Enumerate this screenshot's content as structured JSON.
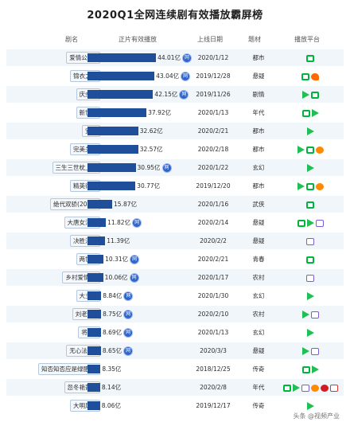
{
  "title": "2020Q1全网连续剧有效播放霸屏榜",
  "headers": {
    "name": "剧名",
    "views": "正片有效播放",
    "date": "上线日期",
    "genre": "题材",
    "platform": "播放平台"
  },
  "colors": {
    "bar": "#1f4e9a",
    "row_alt": "#f1f6fb",
    "net_flag": "#2f65c9"
  },
  "chart_data": {
    "type": "bar",
    "title": "2020Q1全网连续剧有效播放霸屏榜",
    "value_unit": "亿",
    "xlim": [
      0,
      45
    ],
    "rows": [
      {
        "name": "爱情公寓5",
        "value": 44.01,
        "label": "44.01亿",
        "net": true,
        "date": "2020/1/12",
        "genre": "都市",
        "platforms": [
          "iqiyi"
        ]
      },
      {
        "name": "锦衣之下",
        "value": 43.04,
        "label": "43.04亿",
        "net": true,
        "date": "2019/12/28",
        "genre": "悬疑",
        "platforms": [
          "iqiyi",
          "mango"
        ]
      },
      {
        "name": "庆余年",
        "value": 42.15,
        "label": "42.15亿",
        "net": true,
        "date": "2019/11/26",
        "genre": "剧情",
        "platforms": [
          "tencent",
          "iqiyi"
        ]
      },
      {
        "name": "新世界",
        "value": 37.92,
        "label": "37.92亿",
        "net": false,
        "date": "2020/1/13",
        "genre": "年代",
        "platforms": [
          "iqiyi",
          "tencent"
        ]
      },
      {
        "name": "安家",
        "value": 32.62,
        "label": "32.62亿",
        "net": false,
        "date": "2020/2/21",
        "genre": "都市",
        "platforms": [
          "tencent"
        ]
      },
      {
        "name": "完美关系",
        "value": 32.57,
        "label": "32.57亿",
        "net": false,
        "date": "2020/2/18",
        "genre": "都市",
        "platforms": [
          "tencent",
          "iqiyi",
          "youku"
        ]
      },
      {
        "name": "三生三世枕上书",
        "value": 30.95,
        "label": "30.95亿",
        "net": true,
        "date": "2020/1/22",
        "genre": "玄幻",
        "platforms": [
          "tencent"
        ]
      },
      {
        "name": "精英律师",
        "value": 30.77,
        "label": "30.77亿",
        "net": false,
        "date": "2019/12/20",
        "genre": "都市",
        "platforms": [
          "tencent",
          "iqiyi",
          "youku"
        ]
      },
      {
        "name": "绝代双骄(2020)",
        "value": 15.87,
        "label": "15.87亿",
        "net": false,
        "date": "2020/1/16",
        "genre": "武侠",
        "platforms": [
          "iqiyi"
        ]
      },
      {
        "name": "大唐女法医",
        "value": 11.82,
        "label": "11.82亿",
        "net": true,
        "date": "2020/2/14",
        "genre": "悬疑",
        "platforms": [
          "iqiyi",
          "tencent",
          "bili"
        ]
      },
      {
        "name": "决胜法庭",
        "value": 11.39,
        "label": "11.39亿",
        "net": false,
        "date": "2020/2/2",
        "genre": "悬疑",
        "platforms": [
          "bili"
        ]
      },
      {
        "name": "两世欢",
        "value": 10.31,
        "label": "10.31亿",
        "net": true,
        "date": "2020/2/21",
        "genre": "青春",
        "platforms": [
          "iqiyi"
        ]
      },
      {
        "name": "乡村爱情12",
        "value": 10.06,
        "label": "10.06亿",
        "net": true,
        "date": "2020/1/17",
        "genre": "农村",
        "platforms": [
          "bili"
        ]
      },
      {
        "name": "大主宰",
        "value": 8.84,
        "label": "8.84亿",
        "net": true,
        "date": "2020/1/30",
        "genre": "玄幻",
        "platforms": [
          "tencent"
        ]
      },
      {
        "name": "刘老根3",
        "value": 8.75,
        "label": "8.75亿",
        "net": true,
        "date": "2020/2/10",
        "genre": "农村",
        "platforms": [
          "tencent",
          "bili"
        ]
      },
      {
        "name": "将夜2",
        "value": 8.69,
        "label": "8.69亿",
        "net": true,
        "date": "2020/1/13",
        "genre": "玄幻",
        "platforms": [
          "tencent"
        ]
      },
      {
        "name": "无心法师3",
        "value": 8.65,
        "label": "8.65亿",
        "net": true,
        "date": "2020/3/3",
        "genre": "悬疑",
        "platforms": [
          "tencent",
          "bili"
        ]
      },
      {
        "name": "知否知否应是绿肥红瘦",
        "value": 8.35,
        "label": "8.35亿",
        "net": false,
        "date": "2018/12/25",
        "genre": "传奇",
        "platforms": [
          "iqiyi",
          "tencent"
        ]
      },
      {
        "name": "忽冬艳蔷薇",
        "value": 8.14,
        "label": "8.14亿",
        "net": false,
        "date": "2020/2/8",
        "genre": "年代",
        "platforms": [
          "iqiyi",
          "tencent",
          "bili",
          "youku",
          "pptv",
          "sohu"
        ]
      },
      {
        "name": "大明风华",
        "value": 8.06,
        "label": "8.06亿",
        "net": false,
        "date": "2019/12/17",
        "genre": "传奇",
        "platforms": [
          "tencent"
        ]
      }
    ]
  },
  "net_flag_glyph": "网",
  "watermark": "头条 @视频产业"
}
